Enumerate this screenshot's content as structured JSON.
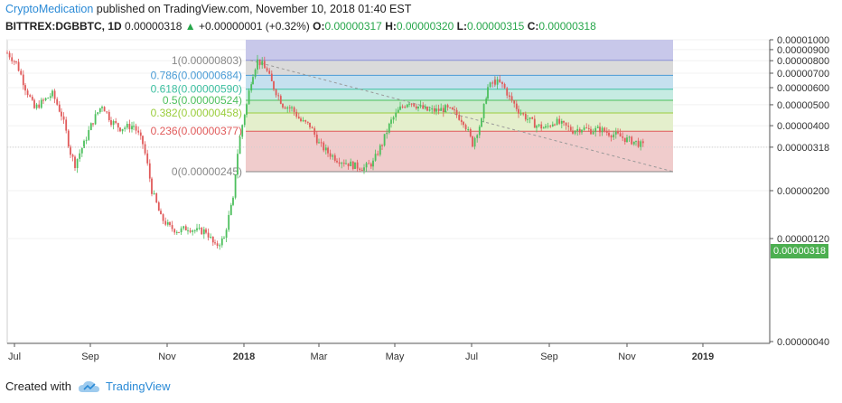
{
  "header": {
    "author": "CryptoMedication",
    "published": "published on TradingView.com, November 10, 2018 01:40 EST",
    "symbol": "BITTREX:DGBBTC, 1D",
    "price": "0.00000318",
    "change_arrow": "▲",
    "change": "+0.00000001 (+0.32%)",
    "o_label": "O:",
    "o": "0.00000317",
    "h_label": "H:",
    "h": "0.00000320",
    "l_label": "L:",
    "l": "0.00000315",
    "c_label": "C:",
    "c": "0.00000318"
  },
  "current_price_label": "0.00000318",
  "footer": {
    "created_with": "Created with",
    "brand": "TradingView"
  },
  "colors": {
    "up": "#26a64a",
    "down": "#e05a5a",
    "brand": "#2a8ad6"
  },
  "chart_data": {
    "type": "candlestick",
    "x_tick_labels": [
      "Jul",
      "Sep",
      "Nov",
      "2018",
      "Mar",
      "May",
      "Jul",
      "Sep",
      "Nov",
      "2019"
    ],
    "y_tick_labels": [
      "0.00001000",
      "0.00000900",
      "0.00000800",
      "0.00000700",
      "0.00000600",
      "0.00000500",
      "0.00000400",
      "0.00000318",
      "0.00000200",
      "0.00000120",
      "0.00000040"
    ],
    "y_ticks": [
      1000,
      900,
      800,
      700,
      600,
      500,
      400,
      318,
      200,
      120,
      40
    ],
    "y_scale": "log",
    "fib_levels": [
      {
        "label": "1(0.00000803)",
        "ratio": 1,
        "price": 803,
        "line_color": "#8a8fd6",
        "fill": "#dadada",
        "text_color": "#888888"
      },
      {
        "label": "0.786(0.00000684)",
        "ratio": 0.786,
        "price": 684,
        "line_color": "#4a9cd6",
        "fill": "#c5e0ef",
        "text_color": "#4a9cd6"
      },
      {
        "label": "0.618(0.00000590)",
        "ratio": 0.618,
        "price": 590,
        "line_color": "#3cbfa0",
        "fill": "#c6ebe2",
        "text_color": "#3cbfa0"
      },
      {
        "label": "0.5(0.00000524)",
        "ratio": 0.5,
        "price": 524,
        "line_color": "#4cbf5c",
        "fill": "#cdebcf",
        "text_color": "#4cbf5c"
      },
      {
        "label": "0.382(0.00000458)",
        "ratio": 0.382,
        "price": 458,
        "line_color": "#9acd3c",
        "fill": "#e4efcc",
        "text_color": "#9acd3c"
      },
      {
        "label": "0.236(0.00000377)",
        "ratio": 0.236,
        "price": 377,
        "line_color": "#e05a5a",
        "fill": "#f0cccc",
        "text_color": "#e05a5a"
      },
      {
        "label": "0(0.00000245)",
        "ratio": 0,
        "price": 245,
        "line_color": "#888888",
        "fill": "#f0cccc",
        "text_color": "#888888"
      }
    ],
    "fib_top_band_fill": "#c8c8ea",
    "price_path": [
      [
        0,
        870
      ],
      [
        10,
        780
      ],
      [
        20,
        600
      ],
      [
        30,
        480
      ],
      [
        40,
        520
      ],
      [
        50,
        560
      ],
      [
        60,
        450
      ],
      [
        70,
        300
      ],
      [
        75,
        265
      ],
      [
        85,
        330
      ],
      [
        95,
        420
      ],
      [
        105,
        500
      ],
      [
        115,
        420
      ],
      [
        125,
        390
      ],
      [
        140,
        400
      ],
      [
        150,
        330
      ],
      [
        160,
        200
      ],
      [
        170,
        150
      ],
      [
        180,
        135
      ],
      [
        190,
        130
      ],
      [
        200,
        135
      ],
      [
        210,
        130
      ],
      [
        220,
        130
      ],
      [
        230,
        110
      ],
      [
        240,
        120
      ],
      [
        250,
        180
      ],
      [
        255,
        300
      ],
      [
        265,
        500
      ],
      [
        272,
        700
      ],
      [
        277,
        800
      ],
      [
        285,
        750
      ],
      [
        295,
        600
      ],
      [
        305,
        500
      ],
      [
        315,
        480
      ],
      [
        325,
        420
      ],
      [
        335,
        400
      ],
      [
        345,
        330
      ],
      [
        355,
        300
      ],
      [
        365,
        280
      ],
      [
        375,
        270
      ],
      [
        385,
        260
      ],
      [
        395,
        255
      ],
      [
        405,
        270
      ],
      [
        415,
        330
      ],
      [
        425,
        420
      ],
      [
        435,
        480
      ],
      [
        445,
        520
      ],
      [
        455,
        490
      ],
      [
        465,
        470
      ],
      [
        475,
        470
      ],
      [
        485,
        480
      ],
      [
        495,
        460
      ],
      [
        505,
        420
      ],
      [
        515,
        330
      ],
      [
        525,
        420
      ],
      [
        532,
        600
      ],
      [
        540,
        640
      ],
      [
        548,
        620
      ],
      [
        556,
        540
      ],
      [
        566,
        470
      ],
      [
        576,
        430
      ],
      [
        586,
        400
      ],
      [
        596,
        390
      ],
      [
        606,
        420
      ],
      [
        616,
        400
      ],
      [
        626,
        380
      ],
      [
        636,
        390
      ],
      [
        646,
        380
      ],
      [
        656,
        385
      ],
      [
        666,
        370
      ],
      [
        676,
        360
      ],
      [
        686,
        345
      ],
      [
        696,
        335
      ],
      [
        706,
        318
      ]
    ],
    "trend_line": [
      [
        277,
        803
      ],
      [
        745,
        245
      ]
    ]
  }
}
